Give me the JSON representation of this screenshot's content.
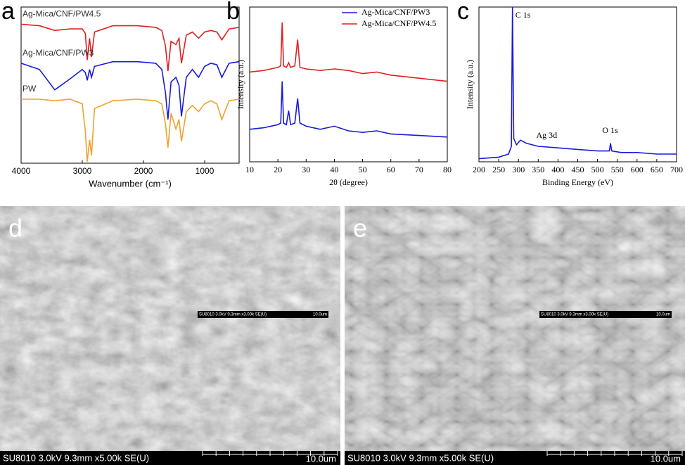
{
  "chart_data": [
    {
      "type": "line",
      "panel_label": "a",
      "xlabel": "Wavenumber (cm⁻¹)",
      "xlim": [
        4000,
        437
      ],
      "xticks": [
        4000,
        3000,
        2000,
        1000
      ],
      "ylim": [
        0,
        100
      ],
      "legend": "inline",
      "x": [
        4000,
        3700,
        3450,
        3200,
        3000,
        2950,
        2920,
        2880,
        2850,
        2800,
        2500,
        2100,
        1800,
        1700,
        1640,
        1600,
        1550,
        1470,
        1420,
        1380,
        1300,
        1200,
        1100,
        1000,
        900,
        800,
        720,
        600,
        437
      ],
      "series": [
        {
          "name": "Ag-Mica/CNF/PW4.5",
          "color": "#e02020",
          "values": [
            89,
            88,
            85,
            86,
            86,
            83,
            66,
            80,
            68,
            84,
            88,
            88,
            87,
            85,
            75,
            59,
            78,
            76,
            80,
            64,
            82,
            84,
            80,
            84,
            85,
            84,
            79,
            86,
            87
          ]
        },
        {
          "name": "Ag-Mica/CNF/PW3",
          "color": "#1a1adb",
          "values": [
            64,
            60,
            47,
            54,
            60,
            58,
            53,
            60,
            55,
            62,
            65,
            65,
            64,
            60,
            45,
            28,
            52,
            55,
            50,
            30,
            55,
            60,
            55,
            62,
            64,
            63,
            55,
            64,
            65
          ]
        },
        {
          "name": "PW",
          "color": "#f0a030",
          "values": [
            41,
            41,
            40,
            41,
            38,
            20,
            1,
            15,
            5,
            35,
            40,
            41,
            40,
            38,
            25,
            10,
            32,
            22,
            28,
            14,
            33,
            37,
            33,
            38,
            40,
            38,
            28,
            40,
            41
          ]
        }
      ]
    },
    {
      "type": "line",
      "panel_label": "b",
      "xlabel": "2θ (degree)",
      "ylabel": "Intensity (a.u.)",
      "xlim": [
        10,
        80
      ],
      "xticks": [
        10,
        20,
        30,
        40,
        50,
        60,
        70,
        80
      ],
      "ylim": [
        0,
        100
      ],
      "legend": "upper right",
      "x": [
        10,
        15,
        20,
        21,
        21.5,
        22,
        23,
        23.8,
        24.5,
        26,
        27,
        27.8,
        30,
        35,
        40,
        45,
        50,
        55,
        60,
        70,
        80
      ],
      "series": [
        {
          "name": "Ag-Mica/CNF/PW3",
          "color": "#1a1adb",
          "values": [
            21,
            22,
            24,
            25,
            52,
            25,
            24,
            33,
            24,
            25,
            41,
            25,
            23,
            21,
            23,
            20,
            19,
            20,
            18,
            17,
            16
          ]
        },
        {
          "name": "Ag-Mica/CNF/PW4.5",
          "color": "#e02020",
          "values": [
            58,
            59,
            61,
            62,
            90,
            62,
            61,
            64,
            61,
            62,
            79,
            61,
            60,
            59,
            60,
            59,
            57,
            58,
            56,
            54,
            52
          ]
        }
      ]
    },
    {
      "type": "line",
      "panel_label": "c",
      "xlabel": "Binding Energy (eV)",
      "ylabel": "Intensity (a.u.)",
      "xlim": [
        200,
        700
      ],
      "xticks": [
        200,
        250,
        300,
        350,
        400,
        450,
        500,
        550,
        600,
        650,
        700
      ],
      "ylim": [
        0,
        100
      ],
      "annotations": [
        "C 1s",
        "Ag 3d",
        "O 1s"
      ],
      "x": [
        200,
        250,
        275,
        282,
        284.8,
        288,
        295,
        305,
        320,
        350,
        400,
        450,
        500,
        530,
        533,
        536,
        560,
        600,
        650,
        700
      ],
      "series": [
        {
          "color": "#1a1adb",
          "values": [
            2,
            3,
            5,
            10,
            100,
            15,
            11,
            14,
            12,
            10,
            9,
            8,
            7,
            7,
            12,
            7,
            6,
            6,
            5,
            5
          ]
        }
      ]
    }
  ],
  "images": [
    {
      "label": "d",
      "caption": "SU8010 3.0kV 9.3mm x5.00k SE(U)",
      "scale": "10.0um",
      "inset_caption": "SU8010 3.0kV 9.3mm x3.00k SE(U)",
      "inset_scale": "10.0um"
    },
    {
      "label": "e",
      "caption": "SU8010 3.0kV 9.3mm x5.00k SE(U)",
      "scale": "10.0um",
      "inset_caption": "SU8010 3.0kV 9.3mm x3.00k SE(U)",
      "inset_scale": "10.0um"
    }
  ]
}
